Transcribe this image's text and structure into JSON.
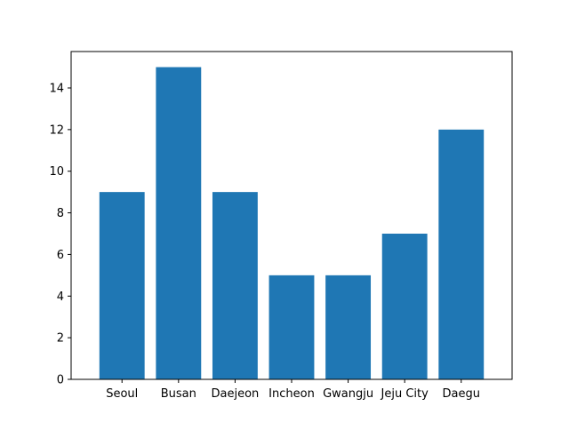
{
  "chart_data": {
    "type": "bar",
    "title": "",
    "xlabel": "",
    "ylabel": "",
    "categories": [
      "Seoul",
      "Busan",
      "Daejeon",
      "Incheon",
      "Gwangju",
      "Jeju City",
      "Daegu"
    ],
    "values": [
      9,
      15,
      9,
      5,
      5,
      7,
      12
    ],
    "ylim": [
      0,
      15.75
    ],
    "yticks": [
      0,
      2,
      4,
      6,
      8,
      10,
      12,
      14
    ],
    "grid": false,
    "legend": "none",
    "bar_color": "#1f77b4"
  }
}
